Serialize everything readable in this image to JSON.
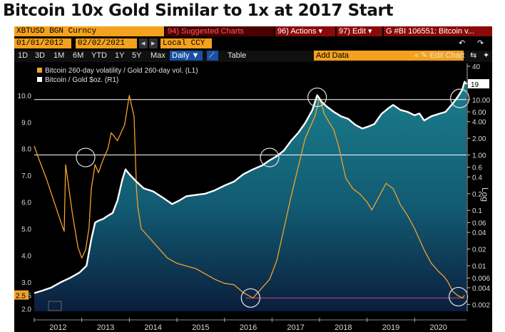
{
  "title": "Bitcoin 10x Gold Similar to 1x at 2017 Start",
  "toolbar": {
    "symbol": "XBTUSD BGN Curncy",
    "suggested": "94) Suggested Charts",
    "actions": "96) Actions ▾",
    "edit": "97) Edit ▾",
    "chart_id": "G #BI 106551: Bitcoin v...",
    "start_date": "01/01/2012",
    "end_date": "02/02/2021",
    "currency": "Local CCY",
    "periods": [
      "1D",
      "3D",
      "1M",
      "6M",
      "YTD",
      "1Y",
      "5Y",
      "Max"
    ],
    "frequency": "Daily ▼",
    "table": "Table",
    "add_data": "Add Data",
    "edit_chart": "« ✎ Edit Chart",
    "icons": [
      "undo-icon",
      "redo-icon",
      "zoom-icon",
      "gear-icon"
    ],
    "arrows": [
      "◂",
      "▸"
    ],
    "nav_icons": [
      "⇆",
      "✦"
    ]
  },
  "chart_data": {
    "type": "line",
    "title": "",
    "legend_position": "top-left",
    "grid": false,
    "x_ticks": [
      "2012",
      "2013",
      "2014",
      "2015",
      "2016",
      "2017",
      "2018",
      "2019",
      "2020"
    ],
    "x_range": [
      2012.0,
      2021.09
    ],
    "left_axis": {
      "ticks": [
        "2.0",
        "2.5",
        "3.0",
        "4.0",
        "5.0",
        "6.0",
        "7.0",
        "8.0",
        "9.0",
        "10.0"
      ],
      "range": [
        1.9,
        11.2
      ],
      "scale": "linear"
    },
    "right_axis": {
      "label": "Log",
      "ticks": [
        "0.002",
        "0.004",
        "0.006",
        "0.01",
        "0.02",
        "0.04",
        "0.06",
        "0.1",
        "0.2",
        "0.4",
        "0.6",
        "1.00",
        "2.00",
        "4.00",
        "6.00",
        "10.00",
        "20",
        "40"
      ],
      "scale": "log",
      "range": [
        0.0015,
        45
      ]
    },
    "last_values": {
      "left": "2.5",
      "right": "19"
    },
    "reference_lines": [
      {
        "axis": "right",
        "value": 10,
        "label": "10.00",
        "color": "#ffffff"
      },
      {
        "axis": "right",
        "value": 1,
        "label": "1.00",
        "color": "#ffffff"
      },
      {
        "axis": "left",
        "value": 2.4,
        "from": 2016.45,
        "to": 2021.05,
        "color": "#d0408a"
      }
    ],
    "series": [
      {
        "name": "Bitcoin 260-day volatility / Gold 260-day vol. (L1)",
        "axis": "left",
        "color": "#f2a22a",
        "x": [
          2012.0,
          2012.1,
          2012.25,
          2012.4,
          2012.55,
          2012.63,
          2012.66,
          2012.8,
          2012.92,
          2013.0,
          2013.08,
          2013.15,
          2013.2,
          2013.28,
          2013.35,
          2013.45,
          2013.55,
          2013.62,
          2013.75,
          2013.9,
          2014.0,
          2014.1,
          2014.15,
          2014.18,
          2014.25,
          2014.4,
          2014.6,
          2014.8,
          2015.0,
          2015.2,
          2015.4,
          2015.6,
          2015.8,
          2016.0,
          2016.2,
          2016.4,
          2016.6,
          2016.8,
          2016.95,
          2017.1,
          2017.2,
          2017.4,
          2017.55,
          2017.7,
          2017.8,
          2017.9,
          2018.0,
          2018.1,
          2018.2,
          2018.3,
          2018.4,
          2018.55,
          2018.7,
          2018.85,
          2019.0,
          2019.1,
          2019.25,
          2019.4,
          2019.55,
          2019.7,
          2019.85,
          2020.0,
          2020.1,
          2020.2,
          2020.35,
          2020.5,
          2020.62,
          2020.7,
          2020.8,
          2020.9,
          2021.0,
          2021.05
        ],
        "values": [
          8.1,
          7.6,
          6.9,
          6.1,
          5.3,
          4.9,
          7.4,
          5.6,
          4.3,
          3.9,
          4.2,
          5.0,
          6.5,
          7.4,
          7.1,
          7.6,
          8.0,
          8.6,
          8.3,
          8.9,
          10.0,
          9.2,
          6.5,
          5.8,
          5.0,
          4.7,
          4.3,
          3.9,
          3.7,
          3.6,
          3.5,
          3.3,
          3.1,
          2.95,
          2.9,
          2.6,
          2.4,
          2.8,
          3.1,
          3.8,
          4.6,
          6.2,
          7.3,
          8.4,
          8.8,
          9.2,
          9.9,
          9.3,
          9.0,
          8.7,
          8.1,
          6.9,
          6.5,
          6.3,
          6.0,
          5.7,
          6.2,
          6.7,
          6.5,
          5.9,
          5.5,
          5.0,
          4.6,
          4.2,
          3.7,
          3.4,
          3.2,
          3.0,
          2.65,
          2.5,
          2.4,
          2.5
        ]
      },
      {
        "name": "Bitcoin / Gold $oz. (R1)",
        "axis": "right",
        "color": "#ffffff",
        "x": [
          2012.0,
          2012.15,
          2012.35,
          2012.55,
          2012.75,
          2012.95,
          2013.1,
          2013.2,
          2013.28,
          2013.35,
          2013.45,
          2013.55,
          2013.65,
          2013.75,
          2013.85,
          2013.92,
          2014.0,
          2014.15,
          2014.3,
          2014.5,
          2014.7,
          2014.9,
          2015.05,
          2015.2,
          2015.4,
          2015.6,
          2015.8,
          2016.0,
          2016.2,
          2016.4,
          2016.6,
          2016.8,
          2016.95,
          2017.1,
          2017.25,
          2017.4,
          2017.55,
          2017.7,
          2017.85,
          2017.95,
          2018.05,
          2018.15,
          2018.3,
          2018.45,
          2018.6,
          2018.75,
          2018.9,
          2019.0,
          2019.15,
          2019.3,
          2019.45,
          2019.55,
          2019.7,
          2019.85,
          2020.0,
          2020.1,
          2020.2,
          2020.35,
          2020.5,
          2020.65,
          2020.8,
          2020.9,
          2021.0,
          2021.05,
          2021.09
        ],
        "values": [
          0.0032,
          0.0035,
          0.004,
          0.005,
          0.006,
          0.0075,
          0.01,
          0.03,
          0.06,
          0.065,
          0.07,
          0.08,
          0.09,
          0.15,
          0.35,
          0.55,
          0.45,
          0.33,
          0.25,
          0.22,
          0.17,
          0.13,
          0.15,
          0.18,
          0.19,
          0.2,
          0.23,
          0.28,
          0.33,
          0.45,
          0.55,
          0.65,
          0.8,
          0.95,
          1.2,
          1.8,
          2.5,
          3.8,
          6.5,
          12.0,
          9.0,
          7.5,
          6.0,
          5.0,
          4.5,
          3.5,
          3.0,
          3.2,
          3.6,
          5.5,
          7.0,
          8.0,
          6.5,
          6.0,
          5.2,
          5.6,
          4.2,
          5.0,
          5.5,
          6.0,
          8.5,
          11.0,
          15.0,
          21.0,
          19.0
        ]
      }
    ],
    "annotations": [
      "circle-2013-peak",
      "circle-2017-start",
      "circle-2017-top",
      "circle-2016-low",
      "circle-2021-low",
      "circle-2021-top"
    ]
  }
}
